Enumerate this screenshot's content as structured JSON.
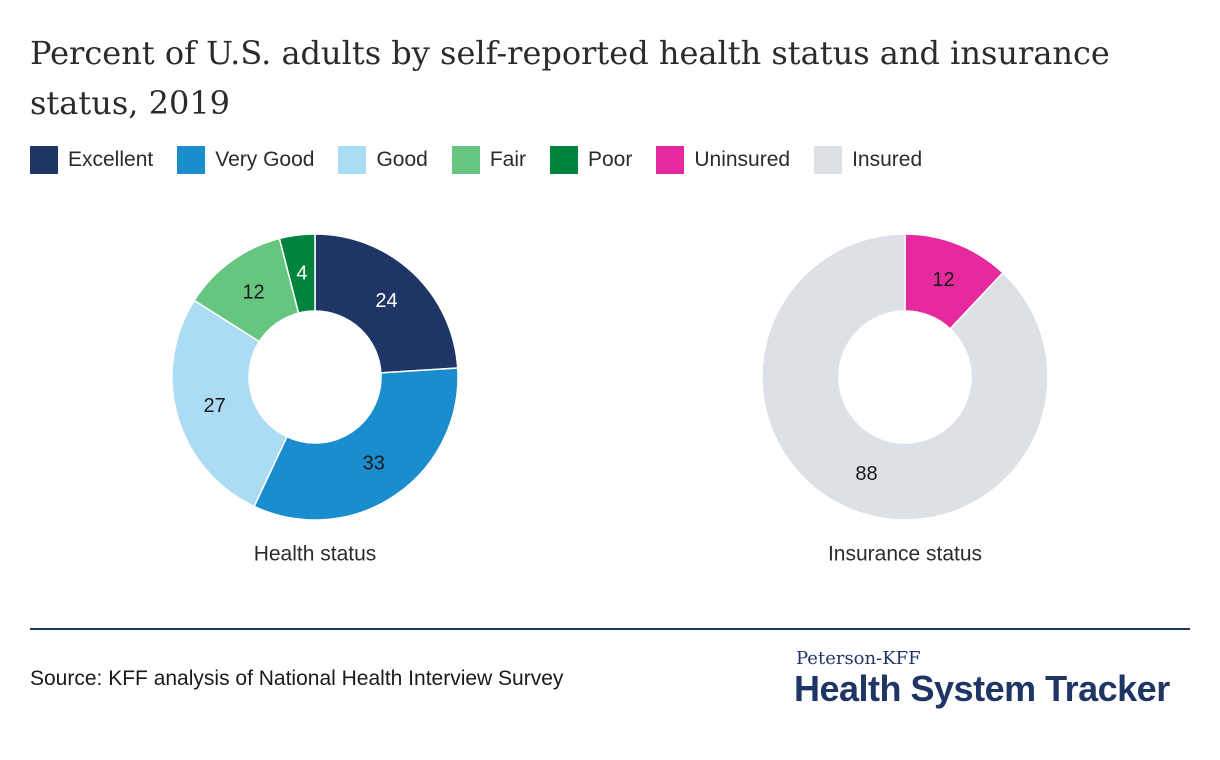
{
  "title": "Percent of U.S. adults by self-reported health status and insurance status, 2019",
  "legend": [
    {
      "label": "Excellent",
      "color": "#1f3566"
    },
    {
      "label": "Very Good",
      "color": "#1a8dcf"
    },
    {
      "label": "Good",
      "color": "#acdcf4"
    },
    {
      "label": "Fair",
      "color": "#66c57f"
    },
    {
      "label": "Poor",
      "color": "#00843d"
    },
    {
      "label": "Uninsured",
      "color": "#e7299e"
    },
    {
      "label": "Insured",
      "color": "#dde1e5"
    }
  ],
  "chart_data": [
    {
      "type": "pie",
      "donut": true,
      "xlabel": "Health status",
      "categories": [
        "Excellent",
        "Very Good",
        "Good",
        "Fair",
        "Poor"
      ],
      "values": [
        24,
        33,
        27,
        12,
        4
      ],
      "colors": [
        "#1f3566",
        "#1a8dcf",
        "#acdcf4",
        "#66c57f",
        "#00843d"
      ],
      "label_colors": [
        "#ffffff",
        "#1a1a1a",
        "#1a1a1a",
        "#1a1a1a",
        "#ffffff"
      ]
    },
    {
      "type": "pie",
      "donut": true,
      "xlabel": "Insurance status",
      "categories": [
        "Uninsured",
        "Insured"
      ],
      "values": [
        12,
        88
      ],
      "colors": [
        "#e7299e",
        "#dde1e5"
      ],
      "label_colors": [
        "#1a1a1a",
        "#1a1a1a"
      ]
    }
  ],
  "footer": {
    "source": "Source: KFF analysis of National Health Interview Survey",
    "brand_small": "Peterson-KFF",
    "brand_big": "Health System Tracker"
  }
}
